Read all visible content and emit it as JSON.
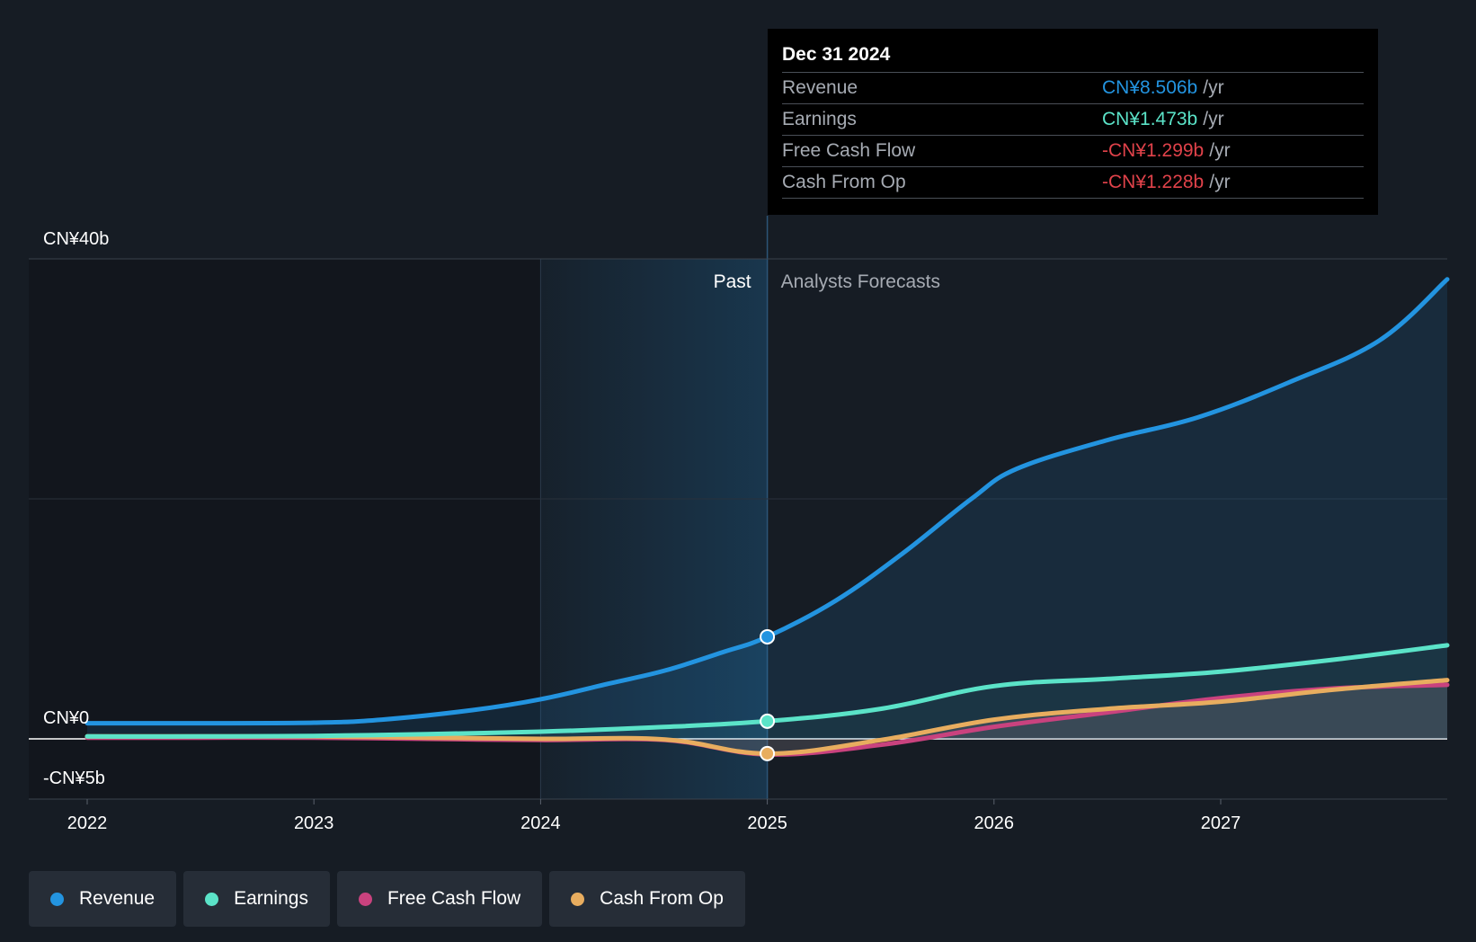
{
  "colors": {
    "revenue": "#2394e0",
    "earnings": "#5be3c8",
    "free_cash_flow": "#c9427e",
    "cash_from_op": "#e8ad5f",
    "background": "#161c24",
    "negative": "#e0424a"
  },
  "tooltip": {
    "date": "Dec 31 2024",
    "rows": [
      {
        "name": "Revenue",
        "value": "CN¥8.506b",
        "unit": "/yr",
        "color": "#2394e0"
      },
      {
        "name": "Earnings",
        "value": "CN¥1.473b",
        "unit": "/yr",
        "color": "#5be3c8"
      },
      {
        "name": "Free Cash Flow",
        "value": "-CN¥1.299b",
        "unit": "/yr",
        "color": "#e0424a"
      },
      {
        "name": "Cash From Op",
        "value": "-CN¥1.228b",
        "unit": "/yr",
        "color": "#e0424a"
      }
    ]
  },
  "regions": {
    "past_label": "Past",
    "forecast_label": "Analysts Forecasts"
  },
  "legend": [
    {
      "label": "Revenue",
      "color": "#2394e0"
    },
    {
      "label": "Earnings",
      "color": "#5be3c8"
    },
    {
      "label": "Free Cash Flow",
      "color": "#c9427e"
    },
    {
      "label": "Cash From Op",
      "color": "#e8ad5f"
    }
  ],
  "chart_data": {
    "type": "line",
    "title": "",
    "xlabel": "",
    "ylabel": "",
    "x_ticks": [
      "2022",
      "2023",
      "2024",
      "2025",
      "2026",
      "2027"
    ],
    "y_tick_labels": [
      "CN¥40b",
      "CN¥0",
      "-CN¥5b"
    ],
    "y_ticks": [
      40,
      0,
      -5
    ],
    "xlim": [
      2022.0,
      2028.0
    ],
    "ylim": [
      -5,
      40
    ],
    "grid": true,
    "highlight_range": [
      2024.0,
      2025.0
    ],
    "past_end": 2025.0,
    "series": [
      {
        "name": "Revenue",
        "color": "#2394e0",
        "x": [
          2022.0,
          2022.5,
          2023.0,
          2023.3,
          2023.7,
          2024.0,
          2024.3,
          2024.55,
          2024.8,
          2025.0,
          2025.3,
          2025.6,
          2025.9,
          2026.1,
          2026.5,
          2026.9,
          2027.3,
          2027.7,
          2028.0
        ],
        "y": [
          1.3,
          1.3,
          1.35,
          1.6,
          2.4,
          3.3,
          4.6,
          5.7,
          7.2,
          8.506,
          11.5,
          15.5,
          20.0,
          22.5,
          24.9,
          26.8,
          29.7,
          33.2,
          38.3
        ]
      },
      {
        "name": "Earnings",
        "color": "#5be3c8",
        "x": [
          2022.0,
          2022.5,
          2023.0,
          2023.5,
          2024.0,
          2024.5,
          2025.0,
          2025.5,
          2026.0,
          2026.5,
          2027.0,
          2027.5,
          2028.0
        ],
        "y": [
          0.2,
          0.2,
          0.25,
          0.4,
          0.6,
          0.95,
          1.473,
          2.5,
          4.4,
          5.0,
          5.6,
          6.6,
          7.8
        ]
      },
      {
        "name": "Free Cash Flow",
        "color": "#c9427e",
        "x": [
          2022.0,
          2022.5,
          2023.0,
          2023.5,
          2024.0,
          2024.55,
          2025.0,
          2025.5,
          2026.0,
          2026.5,
          2027.0,
          2027.5,
          2028.0
        ],
        "y": [
          0.1,
          0.1,
          0.1,
          0.0,
          -0.1,
          -0.1,
          -1.299,
          -0.5,
          1.0,
          2.2,
          3.4,
          4.2,
          4.5
        ]
      },
      {
        "name": "Cash From Op",
        "color": "#e8ad5f",
        "x": [
          2022.0,
          2022.5,
          2023.0,
          2023.5,
          2024.0,
          2024.55,
          2025.0,
          2025.5,
          2026.0,
          2026.5,
          2027.0,
          2027.5,
          2028.0
        ],
        "y": [
          0.2,
          0.2,
          0.2,
          0.1,
          0.0,
          -0.05,
          -1.228,
          -0.1,
          1.6,
          2.5,
          3.1,
          4.1,
          4.9
        ]
      }
    ]
  }
}
